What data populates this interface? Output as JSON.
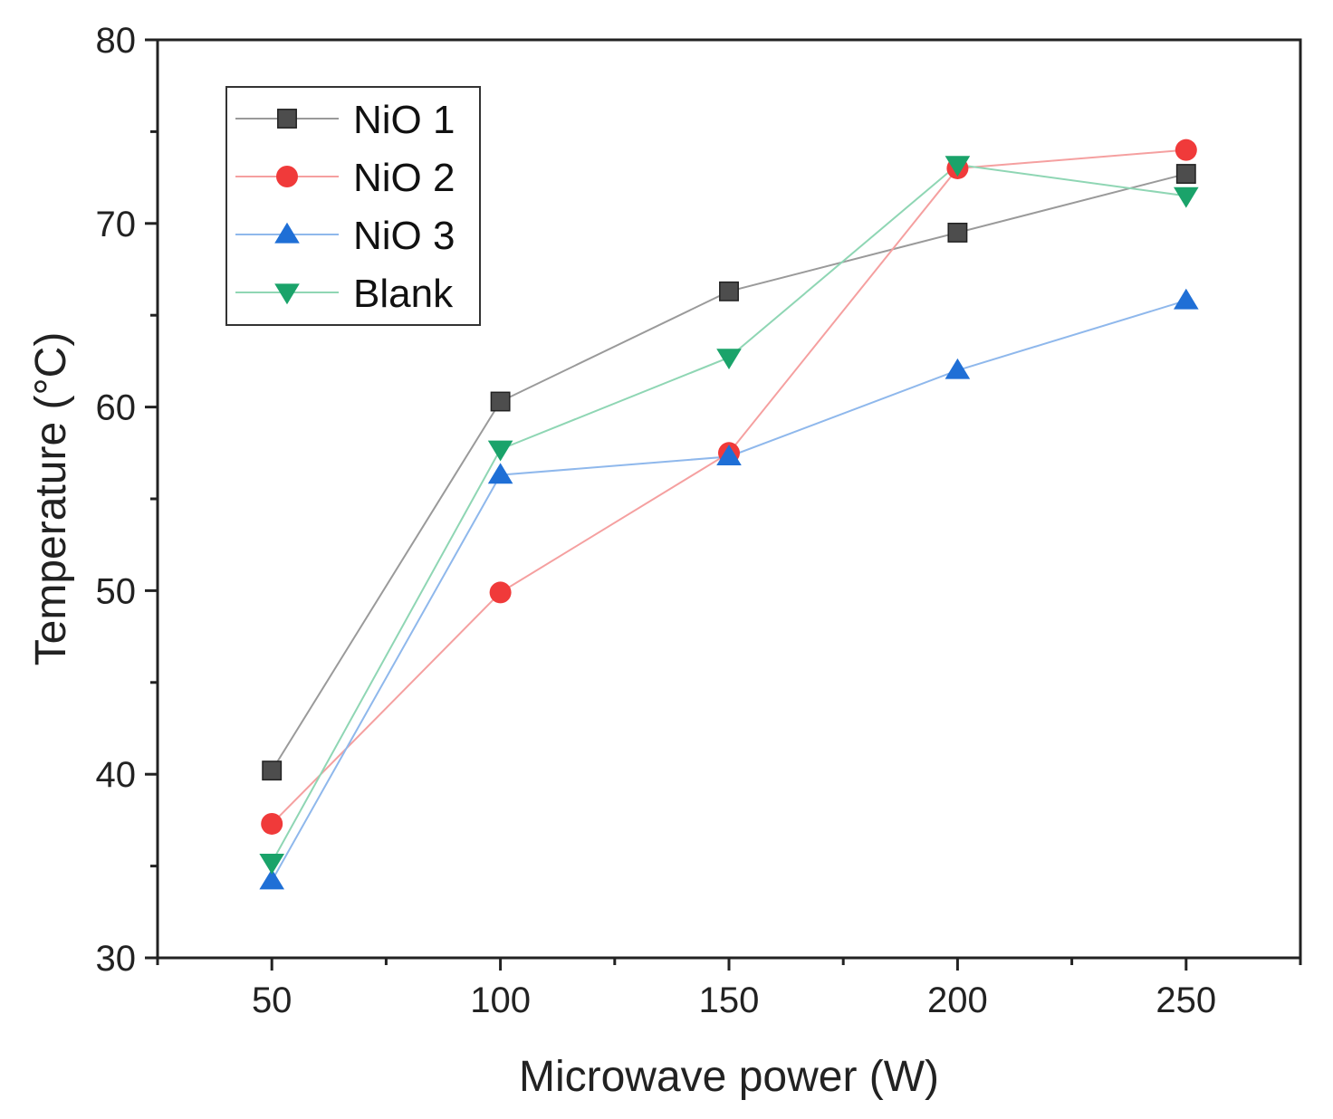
{
  "chart_data": {
    "type": "line",
    "title": "",
    "xlabel": "Microwave power (W)",
    "ylabel": "Temperature (°C)",
    "x": [
      50,
      100,
      150,
      200,
      250
    ],
    "xlim": [
      25,
      275
    ],
    "ylim": [
      30,
      80
    ],
    "xticks": [
      50,
      100,
      150,
      200,
      250
    ],
    "yticks": [
      30,
      40,
      50,
      60,
      70,
      80
    ],
    "grid": false,
    "legend_position": "top-left",
    "series": [
      {
        "name": "NiO 1",
        "marker": "square",
        "color": "#4d4d4d",
        "line_color": "#9a9a9a",
        "values": [
          40.2,
          60.3,
          66.3,
          69.5,
          72.7
        ]
      },
      {
        "name": "NiO 2",
        "marker": "circle",
        "color": "#f03a3a",
        "line_color": "#f5a0a0",
        "values": [
          37.3,
          49.9,
          57.5,
          73.0,
          74.0
        ]
      },
      {
        "name": "NiO 3",
        "marker": "triangle-up",
        "color": "#1f6fd6",
        "line_color": "#8fb8ec",
        "values": [
          34.2,
          56.3,
          57.3,
          62.0,
          65.8
        ]
      },
      {
        "name": "Blank",
        "marker": "triangle-down",
        "color": "#1aa36a",
        "line_color": "#8fd6b4",
        "values": [
          35.2,
          57.7,
          62.7,
          73.2,
          71.5
        ]
      }
    ]
  }
}
